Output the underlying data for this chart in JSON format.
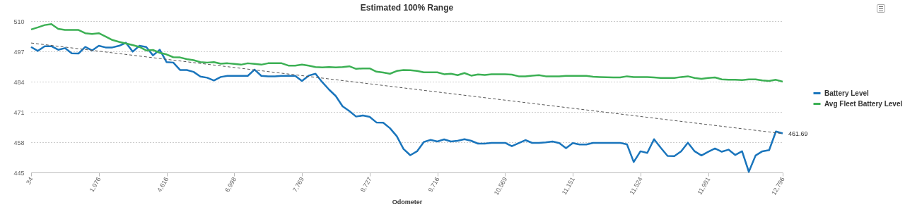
{
  "chart_data": {
    "type": "line",
    "title": "Estimated 100% Range",
    "xlabel": "Odometer",
    "categories": [
      "34",
      null,
      null,
      null,
      null,
      null,
      null,
      null,
      null,
      null,
      "1,976",
      null,
      null,
      null,
      null,
      null,
      null,
      null,
      null,
      null,
      "4,616",
      null,
      null,
      null,
      null,
      null,
      null,
      null,
      null,
      null,
      "6,998",
      null,
      null,
      null,
      null,
      null,
      null,
      null,
      null,
      null,
      "7,769",
      null,
      null,
      null,
      null,
      null,
      null,
      null,
      null,
      null,
      "8,727",
      null,
      null,
      null,
      null,
      null,
      null,
      null,
      null,
      null,
      "9,716",
      null,
      null,
      null,
      null,
      null,
      null,
      null,
      null,
      null,
      "10,569",
      null,
      null,
      null,
      null,
      null,
      null,
      null,
      null,
      null,
      "11,151",
      null,
      null,
      null,
      null,
      null,
      null,
      null,
      null,
      null,
      "11,524",
      null,
      null,
      null,
      null,
      null,
      null,
      null,
      null,
      null,
      "11,991",
      null,
      null,
      null,
      null,
      null,
      null,
      null,
      null,
      null,
      null,
      "12,796"
    ],
    "series": [
      {
        "name": "Battery Level",
        "color": "#1a75bc",
        "values": [
          498.9,
          497.2,
          499.2,
          499.2,
          497.7,
          498.4,
          496.2,
          496.1,
          498.9,
          497.4,
          499.4,
          498.7,
          498.7,
          499.4,
          500.7,
          496.9,
          499.4,
          498.9,
          495.3,
          497.7,
          492.4,
          492.2,
          489.0,
          489.0,
          488.2,
          486.2,
          485.7,
          484.5,
          486.0,
          486.5,
          486.5,
          486.5,
          486.5,
          489.2,
          486.5,
          486.3,
          486.3,
          486.5,
          486.5,
          486.5,
          484.3,
          486.6,
          487.4,
          483.8,
          480.6,
          477.8,
          473.4,
          471.4,
          469.0,
          469.5,
          468.9,
          466.5,
          466.4,
          464.0,
          460.6,
          455.1,
          452.4,
          454.1,
          458.1,
          459.0,
          458.3,
          459.2,
          458.3,
          458.6,
          459.3,
          458.6,
          457.4,
          457.4,
          457.7,
          457.7,
          457.7,
          456.3,
          457.6,
          458.9,
          457.7,
          457.7,
          457.9,
          458.3,
          457.6,
          455.4,
          457.6,
          457.0,
          457.0,
          457.7,
          457.7,
          457.7,
          457.7,
          457.7,
          457.1,
          449.5,
          454.1,
          453.4,
          459.3,
          455.6,
          452.1,
          452.0,
          454.1,
          457.8,
          454.1,
          452.3,
          453.9,
          455.3,
          453.9,
          454.8,
          452.5,
          454.1,
          445.3,
          452.3,
          454.1,
          454.6,
          462.6,
          461.8
        ]
      },
      {
        "name": "Avg Fleet Battery Level",
        "color": "#3cb054",
        "values": [
          506.4,
          507.3,
          508.3,
          508.7,
          506.7,
          506.2,
          506.2,
          506.2,
          504.8,
          504.5,
          504.8,
          503.4,
          501.9,
          501.1,
          500.4,
          499.7,
          498.9,
          497.4,
          497.6,
          496.4,
          495.7,
          494.5,
          494.4,
          493.7,
          493.2,
          492.4,
          492.2,
          492.4,
          491.7,
          491.9,
          491.6,
          491.3,
          491.9,
          491.6,
          491.3,
          491.9,
          491.9,
          491.9,
          490.9,
          490.9,
          491.3,
          490.9,
          490.3,
          490.1,
          490.3,
          490.1,
          490.3,
          490.6,
          489.5,
          489.7,
          489.7,
          488.3,
          487.9,
          487.4,
          488.6,
          489.0,
          488.9,
          488.6,
          488.0,
          488.0,
          488.0,
          487.2,
          487.4,
          486.8,
          487.7,
          486.6,
          487.1,
          486.9,
          487.2,
          487.2,
          487.2,
          487.0,
          486.3,
          486.3,
          486.6,
          486.8,
          486.3,
          486.3,
          486.3,
          486.5,
          486.5,
          486.5,
          486.5,
          486.1,
          486.0,
          485.9,
          485.8,
          485.8,
          486.3,
          486.0,
          486.0,
          486.0,
          485.8,
          485.6,
          485.6,
          485.6,
          486.0,
          486.3,
          485.6,
          485.2,
          485.6,
          485.8,
          485.0,
          484.8,
          484.8,
          484.7,
          485.0,
          485.0,
          484.5,
          484.3,
          484.8,
          484.0
        ]
      },
      {
        "type": "line",
        "color": "#555555",
        "line_style": "dashed",
        "x": [
          "34",
          "12,796"
        ],
        "values": [
          500.6,
          461.69
        ]
      }
    ],
    "annotations": [
      {
        "text": "461.69",
        "x": "12,796",
        "y": 461.69
      }
    ],
    "ylim": [
      445,
      510
    ],
    "yticks": [
      445,
      458,
      471,
      484,
      497,
      510
    ],
    "grid": "y",
    "legend": "right"
  }
}
